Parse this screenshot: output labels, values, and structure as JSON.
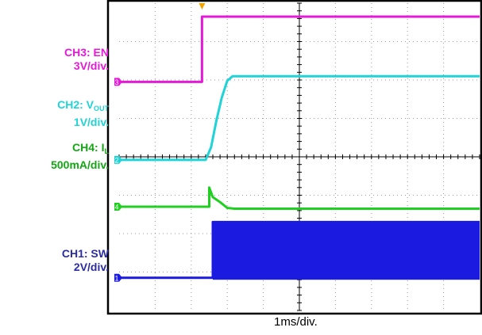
{
  "chart_data": {
    "type": "line",
    "title": "",
    "xlabel": "1ms/div.",
    "x_unit": "ms",
    "xlim": [
      0,
      10
    ],
    "y_unit": "div",
    "ylim": [
      -4,
      4
    ],
    "grid": true,
    "grid_divisions": {
      "x": 10,
      "y": 8
    },
    "trigger_marker_x": 2.3,
    "series": [
      {
        "id": "ch3",
        "label_lines": [
          "CH3: EN",
          "3V/div."
        ],
        "color": "#e619d9",
        "marker": "3",
        "x": [
          0,
          2.3,
          2.3,
          10
        ],
        "y": [
          1.95,
          1.95,
          3.65,
          3.65
        ]
      },
      {
        "id": "ch2",
        "label_lines": [
          "CH2: V",
          "OUT",
          "1V/div."
        ],
        "color": "#1fd3d6",
        "marker": "2",
        "x": [
          0,
          2.4,
          2.55,
          2.7,
          2.85,
          3.0,
          3.15,
          10
        ],
        "y": [
          -0.08,
          -0.08,
          0.25,
          0.95,
          1.55,
          1.98,
          2.1,
          2.1
        ]
      },
      {
        "id": "ch4",
        "label_lines": [
          "CH4: I",
          "L",
          "500mA/div."
        ],
        "color": "#20d020",
        "marker": "4",
        "x": [
          0,
          2.5,
          2.5,
          2.6,
          2.8,
          3.0,
          3.2,
          10
        ],
        "y": [
          -1.3,
          -1.3,
          -0.8,
          -1.05,
          -1.18,
          -1.33,
          -1.35,
          -1.35
        ]
      },
      {
        "id": "ch1",
        "label_lines": [
          "CH1: SW",
          "2V/div."
        ],
        "color": "#1a1ae0",
        "marker": "1",
        "x": [
          0,
          2.6,
          2.6,
          10
        ],
        "y": [
          -3.15,
          -3.15,
          -1.7,
          -1.7
        ],
        "switching_band": {
          "x_start": 2.6,
          "x_end": 10,
          "y_low": -3.2,
          "y_high": -1.7
        }
      }
    ]
  }
}
